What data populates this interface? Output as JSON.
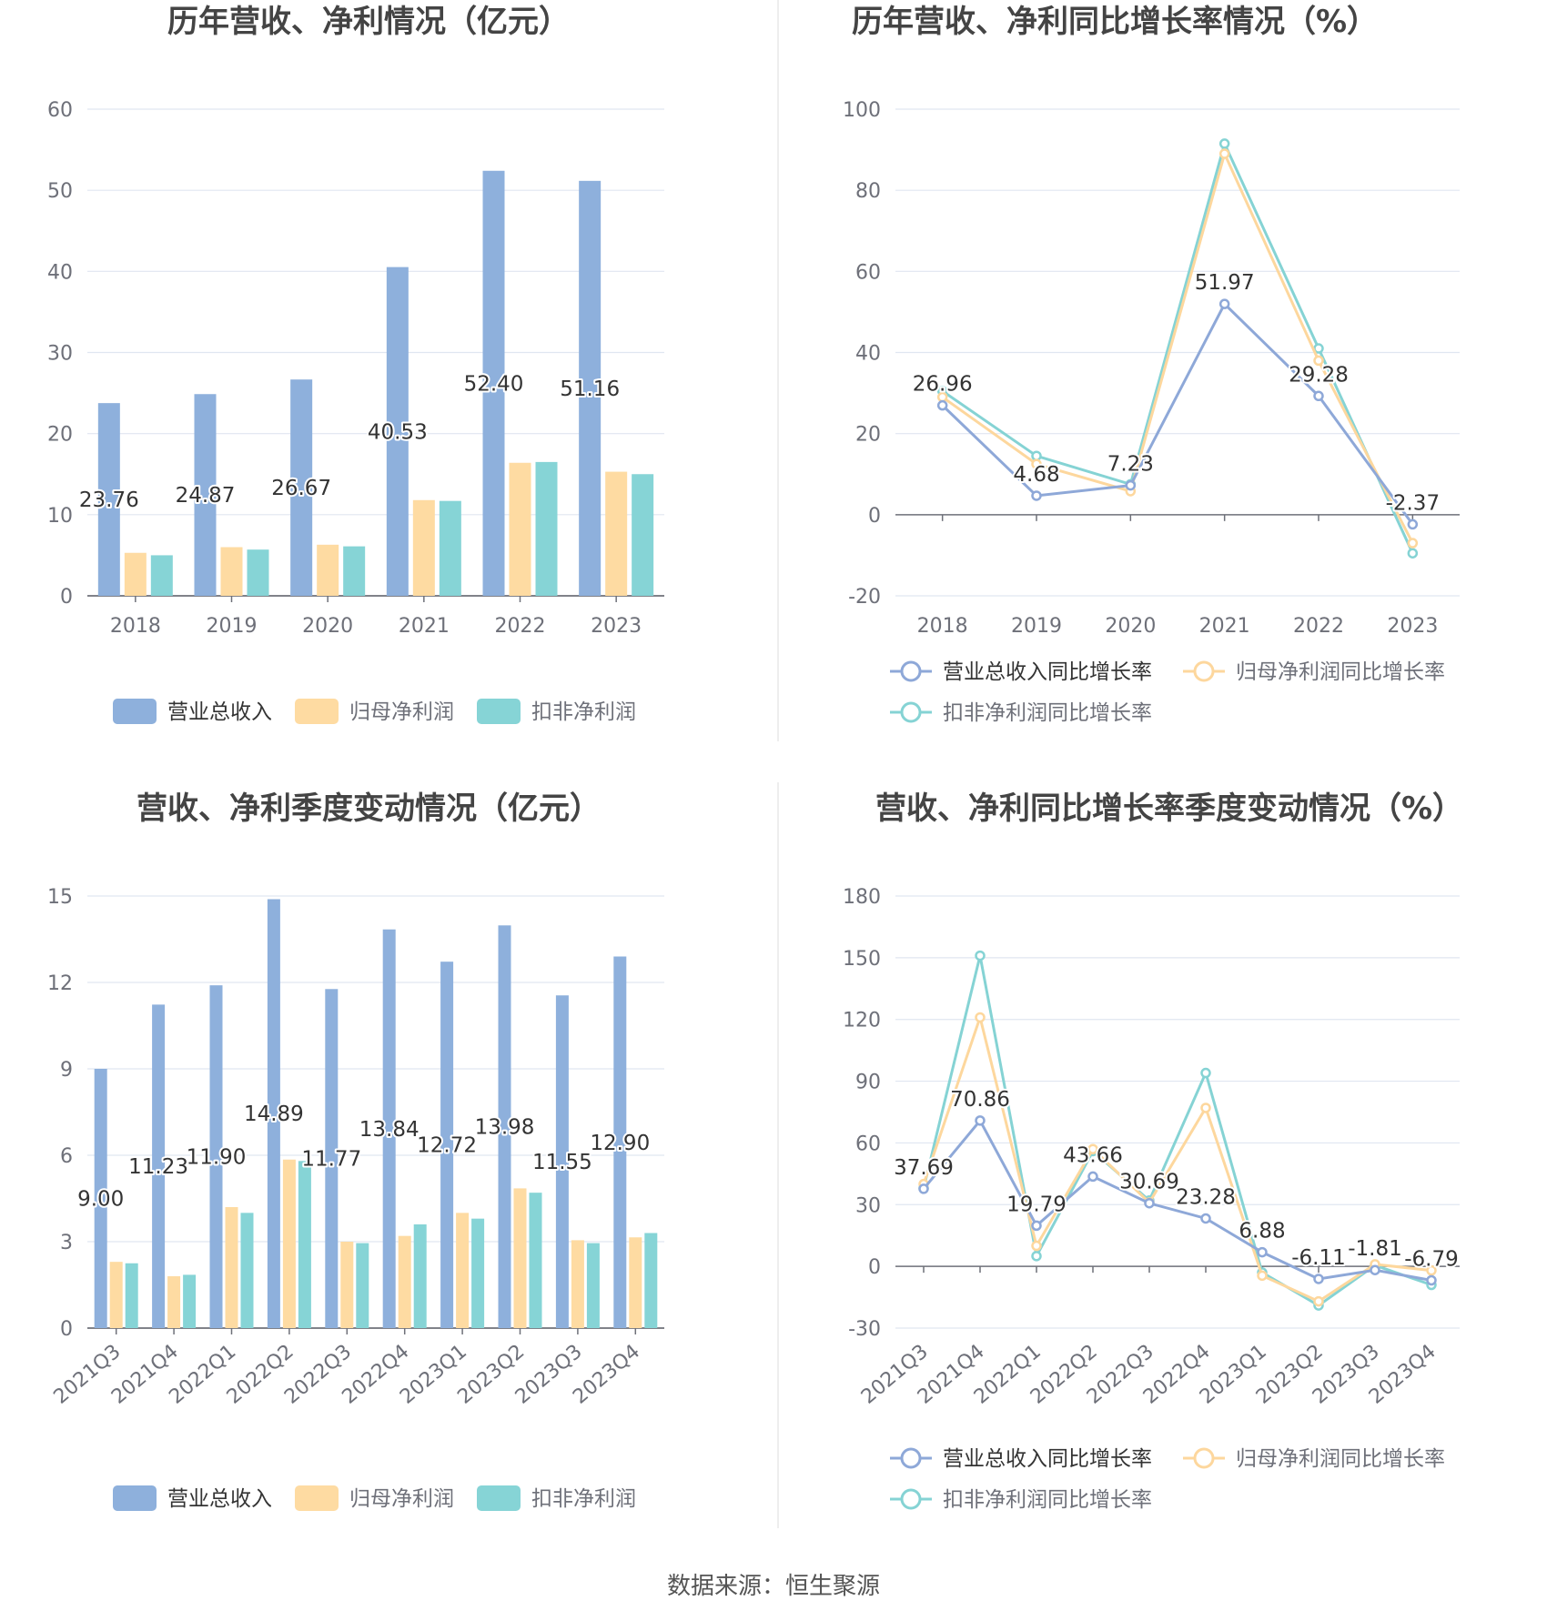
{
  "source": "数据来源：恒生聚源",
  "colors": {
    "revenue": "#8eb0dc",
    "net_profit": "#fedba2",
    "deducted_profit": "#86d4d6",
    "revenue_line": "#8ea8d8",
    "net_line": "#fdd79d",
    "ded_line": "#85d3d4"
  },
  "chart_data": [
    {
      "type": "bar",
      "title": "历年营收、净利情况（亿元）",
      "categories": [
        "2018",
        "2019",
        "2020",
        "2021",
        "2022",
        "2023"
      ],
      "ylim": [
        0,
        60
      ],
      "yticks": [
        0,
        10,
        20,
        30,
        40,
        50,
        60
      ],
      "series": [
        {
          "name": "营业总收入",
          "values": [
            23.76,
            24.87,
            26.67,
            40.53,
            52.4,
            51.16
          ],
          "labels": [
            "23.76",
            "24.87",
            "26.67",
            "40.53",
            "52.40",
            "51.16"
          ]
        },
        {
          "name": "归母净利润",
          "values": [
            5.3,
            6.0,
            6.3,
            11.8,
            16.4,
            15.3
          ]
        },
        {
          "name": "扣非净利润",
          "values": [
            5.0,
            5.7,
            6.1,
            11.7,
            16.5,
            15.0
          ]
        }
      ],
      "legend": "bottom"
    },
    {
      "type": "line",
      "title": "历年营收、净利同比增长率情况（%）",
      "categories": [
        "2018",
        "2019",
        "2020",
        "2021",
        "2022",
        "2023"
      ],
      "ylim": [
        -20,
        100
      ],
      "yticks": [
        -20,
        0,
        20,
        40,
        60,
        80,
        100
      ],
      "series": [
        {
          "name": "营业总收入同比增长率",
          "values": [
            26.96,
            4.68,
            7.23,
            51.97,
            29.28,
            -2.37
          ],
          "labels": [
            "26.96",
            "4.68",
            "7.23",
            "51.97",
            "29.28",
            "-2.37"
          ]
        },
        {
          "name": "归母净利润同比增长率",
          "values": [
            29.0,
            12.5,
            5.8,
            89.0,
            38.0,
            -7.0
          ]
        },
        {
          "name": "扣非净利润同比增长率",
          "values": [
            30.5,
            14.5,
            7.5,
            91.5,
            41.0,
            -9.5
          ]
        }
      ],
      "legend": "bottom"
    },
    {
      "type": "bar",
      "title": "营收、净利季度变动情况（亿元）",
      "categories": [
        "2021Q3",
        "2021Q4",
        "2022Q1",
        "2022Q2",
        "2022Q3",
        "2022Q4",
        "2023Q1",
        "2023Q2",
        "2023Q3",
        "2023Q4"
      ],
      "ylim": [
        0,
        15
      ],
      "yticks": [
        0,
        3,
        6,
        9,
        12,
        15
      ],
      "series": [
        {
          "name": "营业总收入",
          "values": [
            9.0,
            11.23,
            11.9,
            14.89,
            11.77,
            13.84,
            12.72,
            13.98,
            11.55,
            12.9
          ],
          "labels": [
            "9.00",
            "11.23",
            "11.90",
            "14.89",
            "11.77",
            "13.84",
            "12.72",
            "13.98",
            "11.55",
            "12.90"
          ]
        },
        {
          "name": "归母净利润",
          "values": [
            2.3,
            1.8,
            4.2,
            5.85,
            3.0,
            3.2,
            4.0,
            4.85,
            3.05,
            3.15
          ]
        },
        {
          "name": "扣非净利润",
          "values": [
            2.25,
            1.85,
            4.0,
            5.8,
            2.95,
            3.6,
            3.8,
            4.7,
            2.95,
            3.3
          ]
        }
      ],
      "legend": "bottom"
    },
    {
      "type": "line",
      "title": "营收、净利同比增长率季度变动情况（%）",
      "categories": [
        "2021Q3",
        "2021Q4",
        "2022Q1",
        "2022Q2",
        "2022Q3",
        "2022Q4",
        "2023Q1",
        "2023Q2",
        "2023Q3",
        "2023Q4"
      ],
      "ylim": [
        -30,
        180
      ],
      "yticks": [
        -30,
        0,
        30,
        60,
        90,
        120,
        150,
        180
      ],
      "series": [
        {
          "name": "营业总收入同比增长率",
          "values": [
            37.69,
            70.86,
            19.79,
            43.66,
            30.69,
            23.28,
            6.88,
            -6.11,
            -1.81,
            -6.79
          ],
          "labels": [
            "37.69",
            "70.86",
            "19.79",
            "43.66",
            "30.69",
            "23.28",
            "6.88",
            "-6.11",
            "-1.81",
            "-6.79"
          ]
        },
        {
          "name": "归母净利润同比增长率",
          "values": [
            40.0,
            121.0,
            10.0,
            57.0,
            31.0,
            77.0,
            -4.5,
            -17.0,
            1.0,
            -2.0
          ]
        },
        {
          "name": "扣非净利润同比增长率",
          "values": [
            38.0,
            151.0,
            5.0,
            56.0,
            32.0,
            94.0,
            -3.0,
            -19.0,
            0.5,
            -9.0
          ]
        }
      ],
      "legend": "bottom"
    }
  ]
}
